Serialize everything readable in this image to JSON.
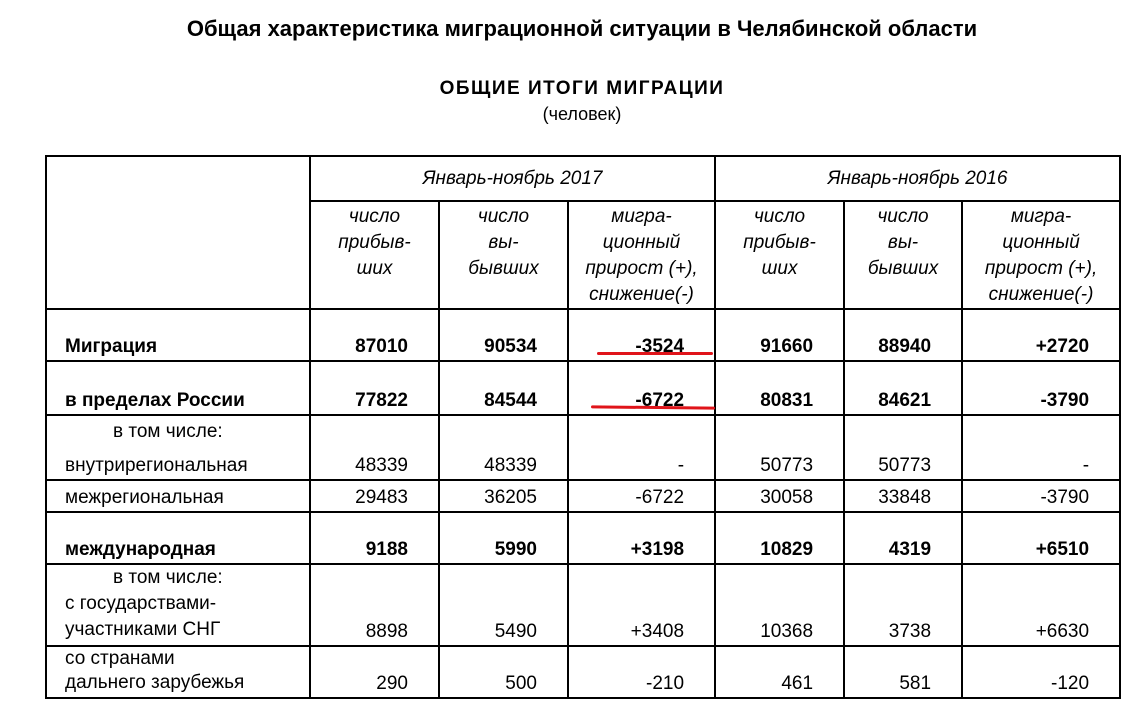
{
  "title": "Общая характеристика миграционной ситуации в Челябинской области",
  "subtitle": "ОБЩИЕ  ИТОГИ  МИГРАЦИИ",
  "units": "(человек)",
  "periods": [
    "Январь-ноябрь 2017",
    "Январь-ноябрь 2016"
  ],
  "columns": {
    "arrived": [
      "число",
      "прибыв-",
      "ших"
    ],
    "departed": [
      "число",
      "вы-",
      "бывших"
    ],
    "growth": [
      "мигра-",
      "ционный",
      "прирост (+),",
      "снижение(-)"
    ]
  },
  "rows": {
    "migration": {
      "label": "Миграция",
      "values": [
        "87010",
        "90534",
        "-3524",
        "91660",
        "88940",
        "+2720"
      ]
    },
    "russia": {
      "label": "в пределах России",
      "values": [
        "77822",
        "84544",
        "-6722",
        "80831",
        "84621",
        "-3790"
      ]
    },
    "intraregional": {
      "note": "в том числе:",
      "label": "внутрирегиональная",
      "values": [
        "48339",
        "48339",
        "-",
        "50773",
        "50773",
        "-"
      ]
    },
    "interregional": {
      "label": "межрегиональная",
      "values": [
        "29483",
        "36205",
        "-6722",
        "30058",
        "33848",
        "-3790"
      ]
    },
    "international": {
      "label": "международная",
      "values": [
        "9188",
        "5990",
        "+3198",
        "10829",
        "4319",
        "+6510"
      ]
    },
    "cis": {
      "note": "в том числе:",
      "label_1": "с государствами-",
      "label_2": "участниками СНГ",
      "values": [
        "8898",
        "5490",
        "+3408",
        "10368",
        "3738",
        "+6630"
      ]
    },
    "far_abroad": {
      "label_1": "со странами",
      "label_2": "дальнего зарубежья",
      "values": [
        "290",
        "500",
        "-210",
        "461",
        "581",
        "-120"
      ]
    }
  },
  "colors": {
    "highlight": "#e0141a"
  }
}
